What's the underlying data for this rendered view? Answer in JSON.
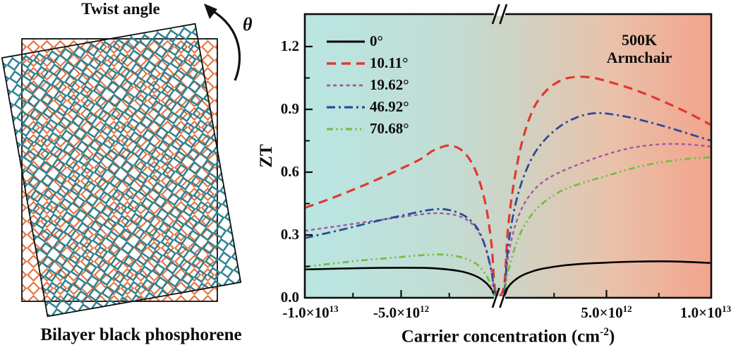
{
  "figure": {
    "left_panel": {
      "title": "Twist angle",
      "angle_symbol": "θ",
      "caption": "Bilayer black phosphorene",
      "twist_angle_deg": 10,
      "lattice_colors": {
        "bottom_layer": "#e7703c",
        "top_layer": "#2b7f8e"
      },
      "border_color": "#111111"
    }
  },
  "chart_data": {
    "type": "line",
    "title": "",
    "xlabel": "Carrier concentration (cm^-2)",
    "ylabel": "ZT",
    "annotations": [
      "500K",
      "Armchair"
    ],
    "legend_position": "top-left-inside",
    "x_axis": {
      "units": "1e12 cm^-2",
      "range": [
        -10,
        10
      ],
      "break_at": 0,
      "ticks": [
        {
          "v": -10,
          "label": "-1.0×10^13"
        },
        {
          "v": -5,
          "label": "-5.0×10^12"
        },
        {
          "v": 5,
          "label": "5.0×10^12"
        },
        {
          "v": 10,
          "label": "1.0×10^13"
        }
      ],
      "minor_ticks": [
        -7.5,
        -2.5,
        2.5,
        7.5
      ]
    },
    "y_axis": {
      "range": [
        0,
        1.35
      ],
      "ticks": [
        0.0,
        0.3,
        0.6,
        0.9,
        1.2
      ],
      "minor_ticks": [
        0.15,
        0.45,
        0.75,
        1.05
      ]
    },
    "background_gradient": [
      "#b9e6e2",
      "#c2ddd4",
      "#cdd4c5",
      "#e9c2ab",
      "#f2a48c"
    ],
    "axis_color": "#0d0d0d",
    "series": [
      {
        "name": "0°",
        "color": "#000000",
        "dash": "solid",
        "width": 2.6,
        "points": [
          [
            -10,
            0.135
          ],
          [
            -8,
            0.14
          ],
          [
            -6,
            0.143
          ],
          [
            -4,
            0.143
          ],
          [
            -3,
            0.139
          ],
          [
            -2,
            0.128
          ],
          [
            -1.5,
            0.117
          ],
          [
            -1,
            0.098
          ],
          [
            -0.6,
            0.072
          ],
          [
            -0.3,
            0.04
          ],
          [
            -0.1,
            0.005
          ],
          [
            0.1,
            0.008
          ],
          [
            0.3,
            0.05
          ],
          [
            0.6,
            0.082
          ],
          [
            1,
            0.108
          ],
          [
            1.5,
            0.127
          ],
          [
            2,
            0.14
          ],
          [
            3,
            0.155
          ],
          [
            4,
            0.163
          ],
          [
            5,
            0.168
          ],
          [
            6,
            0.172
          ],
          [
            7,
            0.174
          ],
          [
            8,
            0.174
          ],
          [
            9,
            0.171
          ],
          [
            10,
            0.166
          ]
        ]
      },
      {
        "name": "10.11°",
        "color": "#e0392e",
        "dash": "dashed",
        "width": 3.2,
        "points": [
          [
            -10,
            0.43
          ],
          [
            -9,
            0.462
          ],
          [
            -8,
            0.497
          ],
          [
            -7,
            0.535
          ],
          [
            -6,
            0.575
          ],
          [
            -5,
            0.617
          ],
          [
            -4,
            0.662
          ],
          [
            -3.4,
            0.7
          ],
          [
            -3,
            0.716
          ],
          [
            -2.6,
            0.727
          ],
          [
            -2.2,
            0.722
          ],
          [
            -1.8,
            0.7
          ],
          [
            -1.4,
            0.655
          ],
          [
            -1,
            0.575
          ],
          [
            -0.6,
            0.44
          ],
          [
            -0.3,
            0.25
          ],
          [
            -0.1,
            0.03
          ],
          [
            0.1,
            0.05
          ],
          [
            0.3,
            0.33
          ],
          [
            0.6,
            0.56
          ],
          [
            1,
            0.755
          ],
          [
            1.5,
            0.9
          ],
          [
            2,
            0.975
          ],
          [
            2.5,
            1.02
          ],
          [
            3,
            1.045
          ],
          [
            3.5,
            1.055
          ],
          [
            4,
            1.055
          ],
          [
            4.5,
            1.048
          ],
          [
            5,
            1.035
          ],
          [
            6,
            1.005
          ],
          [
            7,
            0.968
          ],
          [
            8,
            0.925
          ],
          [
            9,
            0.878
          ],
          [
            10,
            0.825
          ]
        ]
      },
      {
        "name": "19.62°",
        "color": "#a8559f",
        "dash": "dense-dashed",
        "width": 2.4,
        "points": [
          [
            -10,
            0.32
          ],
          [
            -9,
            0.333
          ],
          [
            -8,
            0.346
          ],
          [
            -7,
            0.36
          ],
          [
            -6,
            0.373
          ],
          [
            -5,
            0.386
          ],
          [
            -4,
            0.398
          ],
          [
            -3.5,
            0.403
          ],
          [
            -3,
            0.404
          ],
          [
            -2.5,
            0.4
          ],
          [
            -2,
            0.39
          ],
          [
            -1.5,
            0.367
          ],
          [
            -1,
            0.318
          ],
          [
            -0.6,
            0.235
          ],
          [
            -0.3,
            0.125
          ],
          [
            -0.1,
            0.015
          ],
          [
            0.1,
            0.02
          ],
          [
            0.3,
            0.19
          ],
          [
            0.6,
            0.33
          ],
          [
            1,
            0.435
          ],
          [
            1.5,
            0.51
          ],
          [
            2,
            0.556
          ],
          [
            2.5,
            0.586
          ],
          [
            3,
            0.61
          ],
          [
            4,
            0.65
          ],
          [
            5,
            0.685
          ],
          [
            6,
            0.712
          ],
          [
            7,
            0.728
          ],
          [
            8,
            0.735
          ],
          [
            9,
            0.732
          ],
          [
            10,
            0.722
          ]
        ]
      },
      {
        "name": "46.92°",
        "color": "#2b4b9b",
        "dash": "dashdot",
        "width": 2.8,
        "points": [
          [
            -10,
            0.285
          ],
          [
            -9,
            0.306
          ],
          [
            -8,
            0.327
          ],
          [
            -7,
            0.35
          ],
          [
            -6,
            0.372
          ],
          [
            -5,
            0.392
          ],
          [
            -4,
            0.412
          ],
          [
            -3.5,
            0.42
          ],
          [
            -3,
            0.424
          ],
          [
            -2.5,
            0.419
          ],
          [
            -2,
            0.405
          ],
          [
            -1.5,
            0.378
          ],
          [
            -1,
            0.325
          ],
          [
            -0.6,
            0.235
          ],
          [
            -0.3,
            0.12
          ],
          [
            -0.1,
            0.015
          ],
          [
            0.1,
            0.02
          ],
          [
            0.3,
            0.24
          ],
          [
            0.6,
            0.42
          ],
          [
            1,
            0.565
          ],
          [
            1.5,
            0.678
          ],
          [
            2,
            0.748
          ],
          [
            2.5,
            0.797
          ],
          [
            3,
            0.833
          ],
          [
            3.5,
            0.858
          ],
          [
            4,
            0.875
          ],
          [
            4.5,
            0.882
          ],
          [
            5,
            0.88
          ],
          [
            6,
            0.864
          ],
          [
            7,
            0.84
          ],
          [
            8,
            0.812
          ],
          [
            9,
            0.781
          ],
          [
            10,
            0.75
          ]
        ]
      },
      {
        "name": "70.68°",
        "color": "#76bd44",
        "dash": "dashdotdot",
        "width": 2.8,
        "points": [
          [
            -10,
            0.148
          ],
          [
            -9,
            0.159
          ],
          [
            -8,
            0.169
          ],
          [
            -7,
            0.179
          ],
          [
            -6,
            0.187
          ],
          [
            -5,
            0.195
          ],
          [
            -4,
            0.203
          ],
          [
            -3.5,
            0.206
          ],
          [
            -3,
            0.207
          ],
          [
            -2.5,
            0.204
          ],
          [
            -2,
            0.196
          ],
          [
            -1.5,
            0.182
          ],
          [
            -1,
            0.155
          ],
          [
            -0.6,
            0.11
          ],
          [
            -0.3,
            0.055
          ],
          [
            -0.1,
            0.006
          ],
          [
            0.1,
            0.01
          ],
          [
            0.3,
            0.12
          ],
          [
            0.6,
            0.23
          ],
          [
            1,
            0.33
          ],
          [
            1.5,
            0.405
          ],
          [
            2,
            0.455
          ],
          [
            2.5,
            0.49
          ],
          [
            3,
            0.518
          ],
          [
            4,
            0.553
          ],
          [
            5,
            0.582
          ],
          [
            6,
            0.612
          ],
          [
            7,
            0.636
          ],
          [
            8,
            0.653
          ],
          [
            9,
            0.665
          ],
          [
            10,
            0.671
          ]
        ]
      }
    ]
  }
}
